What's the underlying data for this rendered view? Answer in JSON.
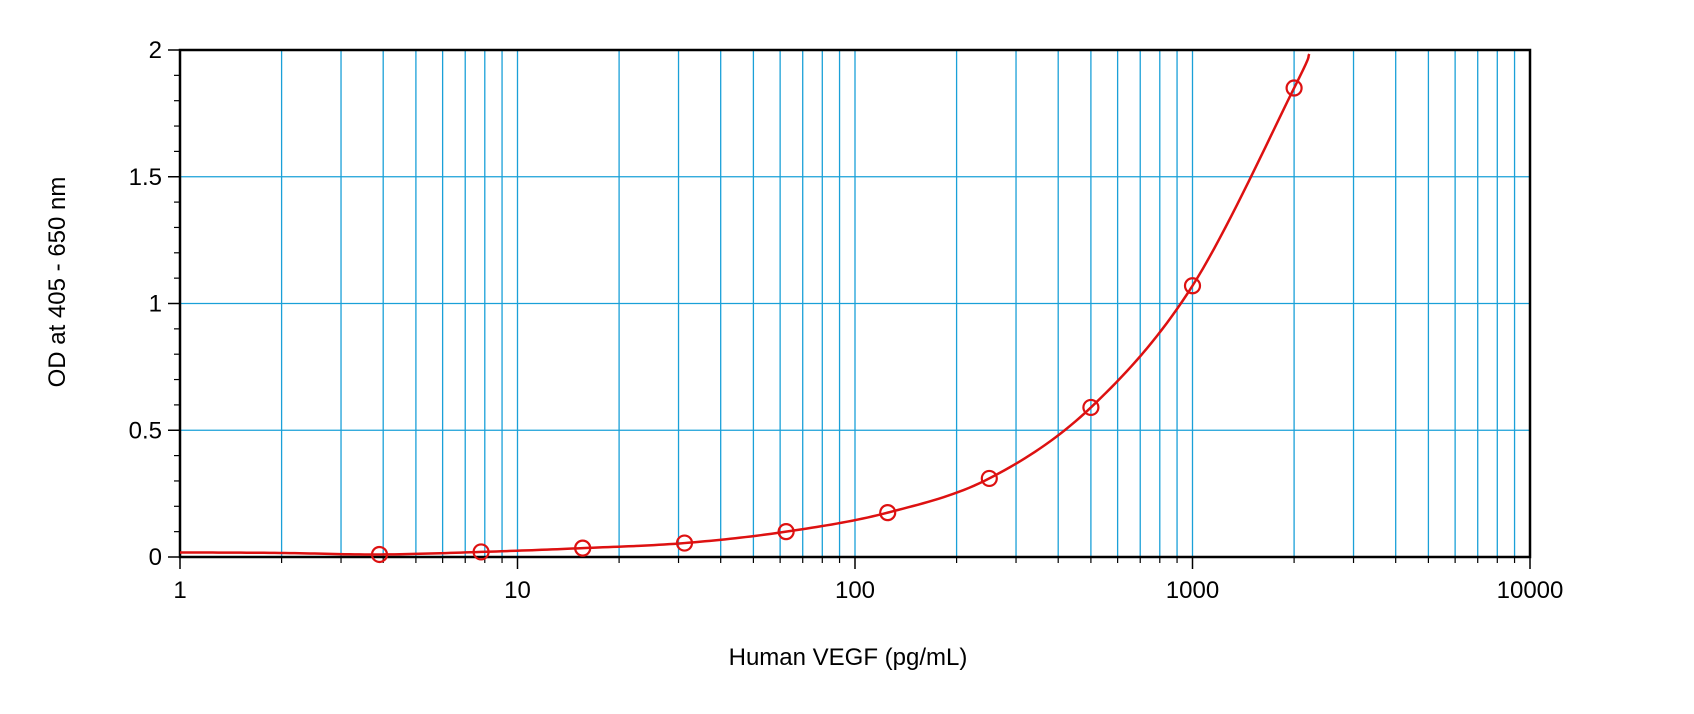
{
  "chart_data": {
    "type": "scatter",
    "title": "",
    "xlabel": "Human VEGF (pg/mL)",
    "ylabel": "OD at 405 - 650 nm",
    "x_scale": "log",
    "xlim": [
      1,
      10000
    ],
    "ylim": [
      0,
      2
    ],
    "x_ticks": [
      1,
      10,
      100,
      1000,
      10000
    ],
    "x_tick_labels": [
      "1",
      "10",
      "100",
      "1000",
      "10000"
    ],
    "y_ticks": [
      0,
      0.5,
      1,
      1.5,
      2
    ],
    "y_tick_labels": [
      "0",
      "0.5",
      "1",
      "1.5",
      "2"
    ],
    "grid": true,
    "colors": {
      "grid": "#1aa0d8",
      "series": "#dd1111",
      "axis": "#000000"
    },
    "series": [
      {
        "x": [
          3.9,
          7.8,
          15.6,
          31.25,
          62.5,
          125,
          250,
          500,
          1000,
          2000
        ],
        "y": [
          0.01,
          0.02,
          0.035,
          0.055,
          0.1,
          0.175,
          0.31,
          0.59,
          1.07,
          1.85
        ],
        "marker": "circle",
        "fit_curve": true
      }
    ]
  }
}
